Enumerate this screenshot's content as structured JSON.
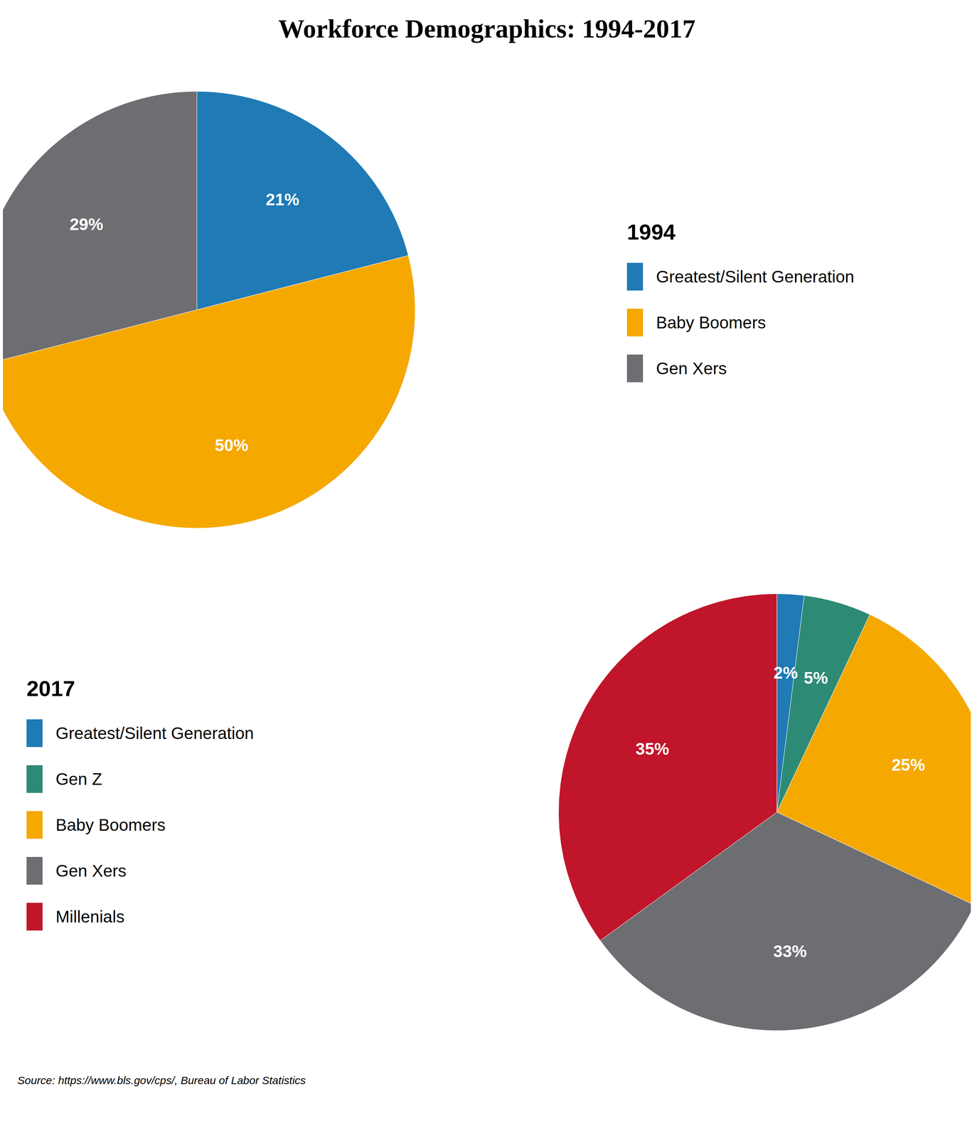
{
  "title": "Workforce Demographics: 1994-2017",
  "annotations": [
    "Source: https://www.bls.gov/cps/, Bureau of Labor Statistics"
  ],
  "chart_data": [
    {
      "type": "pie",
      "title": "1994",
      "categories": [
        "Greatest/Silent Generation",
        "Baby Boomers",
        "Gen Xers"
      ],
      "values": [
        21,
        50,
        29
      ],
      "value_labels": [
        "21%",
        "50%",
        "29%"
      ],
      "colors": [
        "#1f7ab5",
        "#f5a800",
        "#6d6e71"
      ],
      "data_labels": true,
      "legend": "right"
    },
    {
      "type": "pie",
      "title": "2017",
      "categories": [
        "Greatest/Silent Generation",
        "Gen Z",
        "Baby Boomers",
        "Gen Xers",
        "Millenials"
      ],
      "values": [
        2,
        5,
        25,
        33,
        35
      ],
      "value_labels": [
        "2%",
        "5%",
        "25%",
        "33%",
        "35%"
      ],
      "colors": [
        "#1f7ab5",
        "#2d8a75",
        "#f5a800",
        "#6d6e71",
        "#c0152a"
      ],
      "data_labels": true,
      "legend": "left"
    }
  ]
}
